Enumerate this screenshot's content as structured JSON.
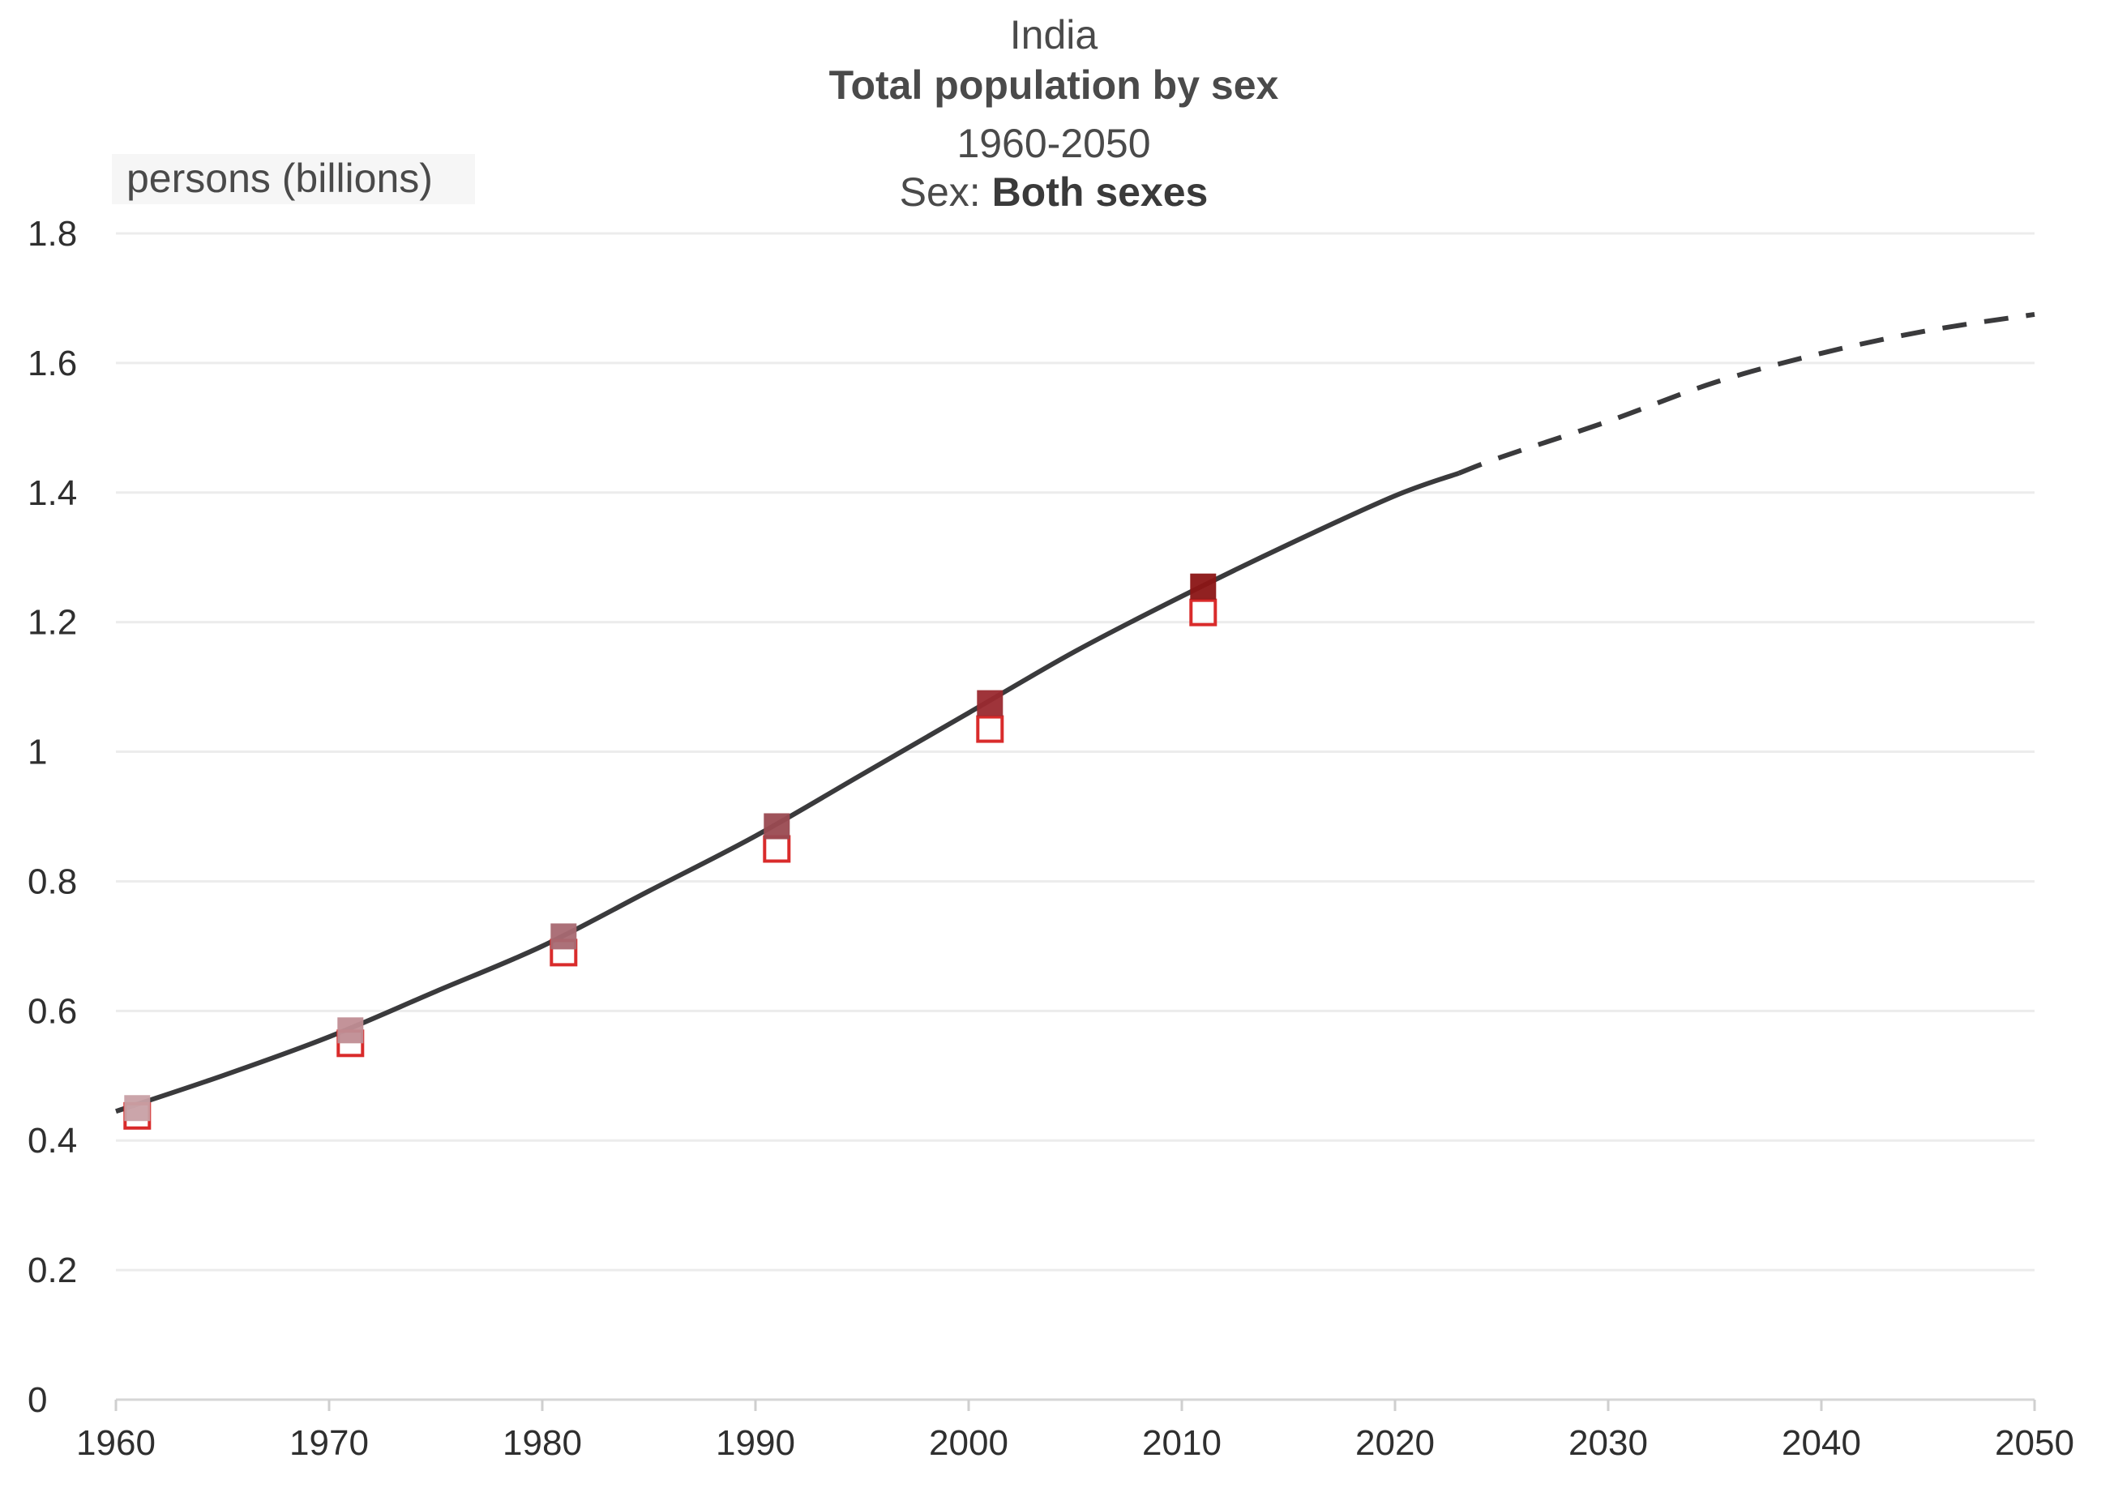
{
  "title": {
    "country": "India",
    "main": "Total population by sex",
    "period": "1960-2050",
    "filter_label": "Sex: ",
    "filter_value": "Both sexes"
  },
  "chart_data": {
    "type": "line",
    "ylabel": "persons (billions)",
    "xlabel": "",
    "xlim": [
      1960,
      2050
    ],
    "ylim": [
      0,
      1.8
    ],
    "x_ticks": [
      1960,
      1970,
      1980,
      1990,
      2000,
      2010,
      2020,
      2030,
      2040,
      2050
    ],
    "y_ticks": [
      0,
      0.2,
      0.4,
      0.6,
      0.8,
      1,
      1.2,
      1.4,
      1.6,
      1.8
    ],
    "grid": true,
    "series": [
      {
        "style": "solid",
        "color": "#3a3a3c",
        "x": [
          1960,
          1965,
          1970,
          1975,
          1980,
          1985,
          1990,
          1995,
          2000,
          2005,
          2010,
          2015,
          2020,
          2023
        ],
        "y": [
          0.445,
          0.5,
          0.56,
          0.63,
          0.7,
          0.785,
          0.87,
          0.965,
          1.06,
          1.155,
          1.24,
          1.32,
          1.395,
          1.43
        ]
      },
      {
        "style": "dashed",
        "color": "#3a3a3c",
        "x": [
          2023,
          2025,
          2030,
          2035,
          2040,
          2045,
          2050
        ],
        "y": [
          1.43,
          1.455,
          1.51,
          1.57,
          1.615,
          1.65,
          1.675
        ]
      }
    ],
    "markers": [
      {
        "x": 1961,
        "filled": 0.45,
        "hollow": 0.438,
        "fill_color": "#c9a1a6"
      },
      {
        "x": 1971,
        "filled": 0.57,
        "hollow": 0.55,
        "fill_color": "#c08e94"
      },
      {
        "x": 1981,
        "filled": 0.715,
        "hollow": 0.69,
        "fill_color": "#a86a72"
      },
      {
        "x": 1991,
        "filled": 0.885,
        "hollow": 0.85,
        "fill_color": "#9a4a52"
      },
      {
        "x": 2001,
        "filled": 1.075,
        "hollow": 1.035,
        "fill_color": "#9a2a30"
      },
      {
        "x": 2011,
        "filled": 1.255,
        "hollow": 1.215,
        "fill_color": "#8c1616"
      }
    ],
    "hollow_marker_color": "#d92b2b"
  }
}
